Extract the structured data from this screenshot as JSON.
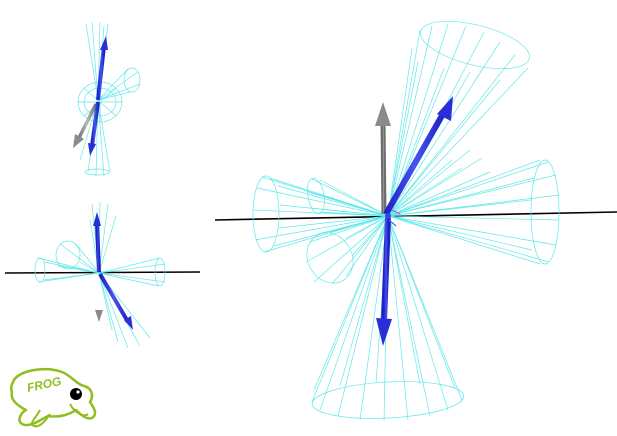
{
  "logo": {
    "text": "FROG",
    "color": "#8fbf1f"
  },
  "colors": {
    "cone_wireframe": "#5fe8ea",
    "arrow_blue": "#2a2ed8",
    "arrow_gray": "#8a8a8a",
    "axis_line": "#000000",
    "background": "#ffffff"
  },
  "views": [
    {
      "name": "top-left-view"
    },
    {
      "name": "middle-left-view"
    },
    {
      "name": "main-view"
    }
  ]
}
